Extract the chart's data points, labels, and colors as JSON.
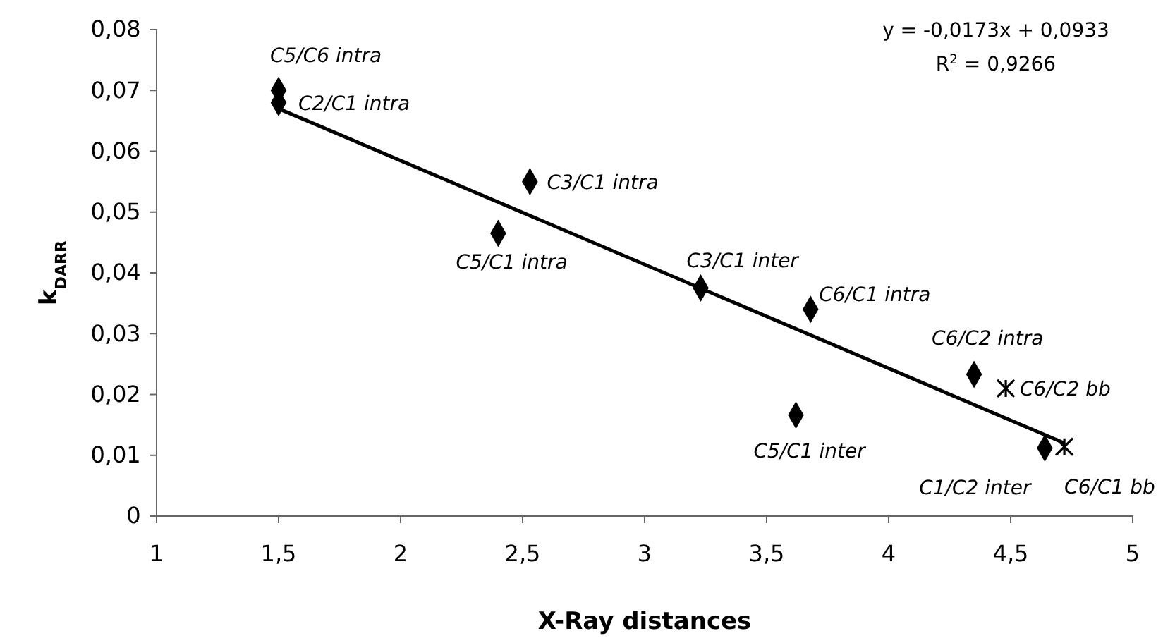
{
  "chart_data": {
    "type": "scatter",
    "xlabel": "X-Ray distances",
    "ylabel": "k$_{DARR}$",
    "xlim": [
      1,
      5
    ],
    "ylim": [
      0,
      0.08
    ],
    "xticks": [
      1,
      {
        "value": 1.5,
        "label": "1,5"
      },
      2,
      {
        "value": 2.5,
        "label": "2,5"
      },
      3,
      {
        "value": 3.5,
        "label": "3,5"
      },
      4,
      {
        "value": 4.5,
        "label": "4,5"
      },
      5
    ],
    "yticks": [
      0,
      {
        "value": 0.01,
        "label": "0,01"
      },
      {
        "value": 0.02,
        "label": "0,02"
      },
      {
        "value": 0.03,
        "label": "0,03"
      },
      {
        "value": 0.04,
        "label": "0,04"
      },
      {
        "value": 0.05,
        "label": "0,05"
      },
      {
        "value": 0.06,
        "label": "0,06"
      },
      {
        "value": 0.07,
        "label": "0,07"
      },
      {
        "value": 0.08,
        "label": "0,08"
      }
    ],
    "grid": false,
    "series": [
      {
        "marker": "diamond",
        "color": "#000000",
        "x": [
          1.5,
          1.5,
          2.53,
          2.4,
          3.23,
          3.68,
          4.35,
          3.62,
          4.64
        ],
        "values": [
          0.07,
          0.068,
          0.055,
          0.0465,
          0.0375,
          0.034,
          0.0233,
          0.0166,
          0.0112
        ]
      },
      {
        "marker": "cross",
        "color": "#000000",
        "x": [
          4.48,
          4.72
        ],
        "values": [
          0.021,
          0.0114
        ]
      },
      {
        "type": "line",
        "marker": "none",
        "line_style": "solid",
        "color": "#000000",
        "x": [
          1.5,
          4.72
        ],
        "values": [
          0.067,
          0.012
        ]
      }
    ],
    "annotations": [
      {
        "text": "C5/C6 intra",
        "x": 1.5,
        "y": 0.07
      },
      {
        "text": "C2/C1 intra",
        "x": 1.5,
        "y": 0.068
      },
      {
        "text": "C3/C1 intra",
        "x": 2.53,
        "y": 0.055
      },
      {
        "text": "C5/C1 intra",
        "x": 2.4,
        "y": 0.0465
      },
      {
        "text": "C3/C1 inter",
        "x": 3.23,
        "y": 0.0375
      },
      {
        "text": "C6/C1 intra",
        "x": 3.68,
        "y": 0.034
      },
      {
        "text": "C6/C2 intra",
        "x": 4.35,
        "y": 0.0233
      },
      {
        "text": "C6/C2 bb",
        "x": 4.48,
        "y": 0.021
      },
      {
        "text": "C5/C1 inter",
        "x": 3.62,
        "y": 0.0166
      },
      {
        "text": "C1/C2 inter",
        "x": 4.64,
        "y": 0.0112
      },
      {
        "text": "C6/C1 bb",
        "x": 4.72,
        "y": 0.0114
      },
      "y = -0,0173x + 0,0933",
      "R$^{2}$ = 0,9266"
    ]
  }
}
